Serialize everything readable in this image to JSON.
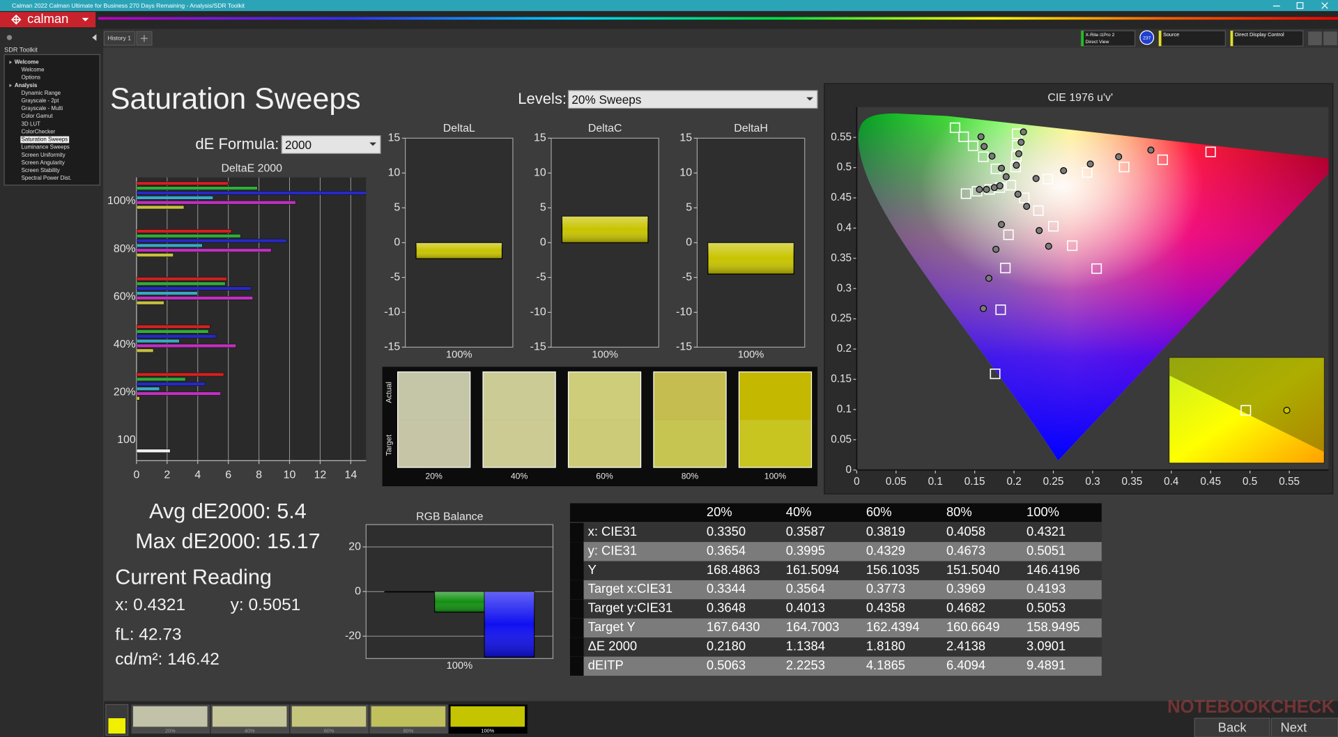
{
  "window": {
    "title": "Calman 2022 Calman Ultimate for Business 270 Days Remaining - Analysis/SDR Toolkit"
  },
  "toolbar": {
    "logo": "calman",
    "tab": "History 1",
    "meter": "X-Rite i1Pro 2",
    "meter_mode": "Direct View",
    "meter_badge": "237",
    "source": "Source",
    "display": "Direct Display Control"
  },
  "sidebar": {
    "title": "SDR Toolkit",
    "items": [
      {
        "label": "Welcome",
        "group": true
      },
      {
        "label": "Welcome"
      },
      {
        "label": "Options"
      },
      {
        "label": "Analysis",
        "group": true
      },
      {
        "label": "Dynamic Range"
      },
      {
        "label": "Grayscale - 2pt"
      },
      {
        "label": "Grayscale - Multi"
      },
      {
        "label": "Color Gamut"
      },
      {
        "label": "3D LUT"
      },
      {
        "label": "ColorChecker"
      },
      {
        "label": "Saturation Sweeps",
        "selected": true
      },
      {
        "label": "Luminance Sweeps"
      },
      {
        "label": "Screen Uniformity"
      },
      {
        "label": "Screen Angularity"
      },
      {
        "label": "Screen Stability"
      },
      {
        "label": "Spectral Power Dist."
      }
    ]
  },
  "page": {
    "title": "Saturation Sweeps",
    "levels_label": "Levels:",
    "levels_value": "20% Sweeps",
    "formula_label": "dE Formula:",
    "formula_value": "2000"
  },
  "summary": {
    "avg": "Avg dE2000: 5.4",
    "max": "Max dE2000: 15.17",
    "current_title": "Current Reading",
    "x": "x: 0.4321",
    "y": "y: 0.5051",
    "fl": "fL: 42.73",
    "cdm2": "cd/m²: 146.42"
  },
  "chart_data": [
    {
      "type": "bar",
      "orientation": "horizontal",
      "title": "DeltaE 2000",
      "categories": [
        "100%",
        "80%",
        "60%",
        "40%",
        "20%",
        "100"
      ],
      "series": [
        {
          "color": "#d42020",
          "values": [
            6.0,
            6.2,
            5.9,
            4.8,
            5.7,
            null
          ]
        },
        {
          "color": "#2fae3a",
          "values": [
            7.9,
            6.8,
            5.8,
            4.7,
            3.2,
            null
          ]
        },
        {
          "color": "#2828c8",
          "values": [
            15.17,
            9.8,
            7.5,
            5.2,
            4.5,
            null
          ]
        },
        {
          "color": "#3aa8c8",
          "values": [
            5.0,
            4.3,
            4.0,
            2.8,
            1.5,
            null
          ]
        },
        {
          "color": "#c030c0",
          "values": [
            10.4,
            8.8,
            7.6,
            6.5,
            5.5,
            null
          ]
        },
        {
          "color": "#c8c040",
          "values": [
            3.1,
            2.4,
            1.8,
            1.1,
            0.2,
            null
          ]
        },
        {
          "color": "#f0f0f0",
          "values": [
            null,
            null,
            null,
            null,
            null,
            2.2
          ]
        }
      ],
      "xlim": [
        0,
        15
      ],
      "xticks": [
        0,
        2,
        4,
        6,
        8,
        10,
        12,
        14
      ],
      "grid": true
    },
    {
      "type": "bar",
      "title": "DeltaL",
      "categories": [
        "100%"
      ],
      "values": [
        -2.3
      ],
      "color": "#c8c400",
      "ylim": [
        -15,
        15
      ],
      "yticks": [
        -15,
        -10,
        -5,
        0,
        5,
        10,
        15
      ],
      "grid": false
    },
    {
      "type": "bar",
      "title": "DeltaC",
      "categories": [
        "100%"
      ],
      "values": [
        3.8
      ],
      "color": "#c8c400",
      "ylim": [
        -15,
        15
      ],
      "yticks": [
        -15,
        -10,
        -5,
        0,
        5,
        10,
        15
      ],
      "grid": false
    },
    {
      "type": "bar",
      "title": "DeltaH",
      "categories": [
        "100%"
      ],
      "values": [
        -4.5
      ],
      "color": "#c8c400",
      "ylim": [
        -15,
        15
      ],
      "yticks": [
        -15,
        -10,
        -5,
        0,
        5,
        10,
        15
      ],
      "grid": false
    },
    {
      "type": "bar",
      "title": "RGB Balance",
      "categories": [
        "100%"
      ],
      "series": [
        {
          "color": "#c00000",
          "values": [
            0
          ]
        },
        {
          "color": "#119011",
          "values": [
            -9.2
          ]
        },
        {
          "color": "#1010f0",
          "values": [
            -29.4
          ]
        }
      ],
      "ylim": [
        -30,
        30
      ],
      "yticks": [
        -20,
        0,
        20
      ],
      "grid": true
    },
    {
      "type": "scatter",
      "title": "CIE 1976 u'v'",
      "series": [
        {
          "marker": "square",
          "color": "#ffffff",
          "x": [
            0.196,
            0.125,
            0.136,
            0.148,
            0.161,
            0.177,
            0.139,
            0.153,
            0.169,
            0.182,
            0.204,
            0.204,
            0.203,
            0.202,
            0.243,
            0.293,
            0.34,
            0.389,
            0.45,
            0.231,
            0.25,
            0.274,
            0.305,
            0.193,
            0.189,
            0.183,
            0.176,
            0.213
          ],
          "y": [
            0.471,
            0.566,
            0.551,
            0.536,
            0.518,
            0.498,
            0.457,
            0.461,
            0.464,
            0.467,
            0.556,
            0.537,
            0.519,
            0.501,
            0.481,
            0.492,
            0.501,
            0.513,
            0.526,
            0.429,
            0.403,
            0.371,
            0.333,
            0.389,
            0.334,
            0.265,
            0.159,
            0.45
          ]
        },
        {
          "marker": "circle",
          "color": "#7a7a7a",
          "x": [
            0.158,
            0.162,
            0.172,
            0.184,
            0.19,
            0.212,
            0.209,
            0.206,
            0.203,
            0.156,
            0.165,
            0.175,
            0.182,
            0.228,
            0.263,
            0.297,
            0.333,
            0.374,
            0.205,
            0.216,
            0.232,
            0.244,
            0.184,
            0.177,
            0.168,
            0.161
          ],
          "y": [
            0.551,
            0.535,
            0.519,
            0.499,
            0.485,
            0.559,
            0.542,
            0.523,
            0.504,
            0.464,
            0.464,
            0.467,
            0.47,
            0.482,
            0.495,
            0.506,
            0.518,
            0.529,
            0.456,
            0.436,
            0.396,
            0.37,
            0.406,
            0.365,
            0.317,
            0.267
          ]
        }
      ],
      "xlim": [
        0,
        0.6
      ],
      "ylim": [
        0,
        0.6
      ],
      "xticks": [
        0,
        0.05,
        0.1,
        0.15,
        0.2,
        0.25,
        0.3,
        0.35,
        0.4,
        0.45,
        0.5,
        0.55
      ],
      "yticks": [
        0,
        0.05,
        0.1,
        0.15,
        0.2,
        0.25,
        0.3,
        0.35,
        0.4,
        0.45,
        0.5,
        0.55
      ]
    }
  ],
  "swatches": {
    "labels": [
      "20%",
      "40%",
      "60%",
      "80%",
      "100%"
    ],
    "actual_label": "Actual",
    "target_label": "Target",
    "actual": [
      "#c5c5a8",
      "#cbcb96",
      "#cdcd7a",
      "#c6bd50",
      "#c4b800"
    ],
    "target": [
      "#c6c6a6",
      "#cbcb93",
      "#cccc78",
      "#c6c552",
      "#c8c420"
    ]
  },
  "strip_colors": [
    "#c2c2a8",
    "#c6c69b",
    "#c5c57d",
    "#c0c05d",
    "#c4c400"
  ],
  "table": {
    "columns": [
      "20%",
      "40%",
      "60%",
      "80%",
      "100%"
    ],
    "rows": [
      {
        "label": "x: CIE31",
        "values": [
          "0.3350",
          "0.3587",
          "0.3819",
          "0.4058",
          "0.4321"
        ]
      },
      {
        "label": "y: CIE31",
        "values": [
          "0.3654",
          "0.3995",
          "0.4329",
          "0.4673",
          "0.5051"
        ]
      },
      {
        "label": "Y",
        "values": [
          "168.4863",
          "161.5094",
          "156.1035",
          "151.5040",
          "146.4196"
        ]
      },
      {
        "label": "Target x:CIE31",
        "values": [
          "0.3344",
          "0.3564",
          "0.3773",
          "0.3969",
          "0.4193"
        ]
      },
      {
        "label": "Target y:CIE31",
        "values": [
          "0.3648",
          "0.4013",
          "0.4358",
          "0.4682",
          "0.5053"
        ]
      },
      {
        "label": "Target Y",
        "values": [
          "167.6430",
          "164.7003",
          "162.4394",
          "160.6649",
          "158.9495"
        ]
      },
      {
        "label": "ΔE 2000",
        "values": [
          "0.2180",
          "1.1384",
          "1.8180",
          "2.4138",
          "3.0901"
        ]
      },
      {
        "label": "dEITP",
        "values": [
          "0.5063",
          "2.2253",
          "4.1865",
          "6.4094",
          "9.4891"
        ]
      }
    ]
  },
  "nav": {
    "back": "Back",
    "next": "Next"
  },
  "watermark": "NOTEBOOKCHECK"
}
